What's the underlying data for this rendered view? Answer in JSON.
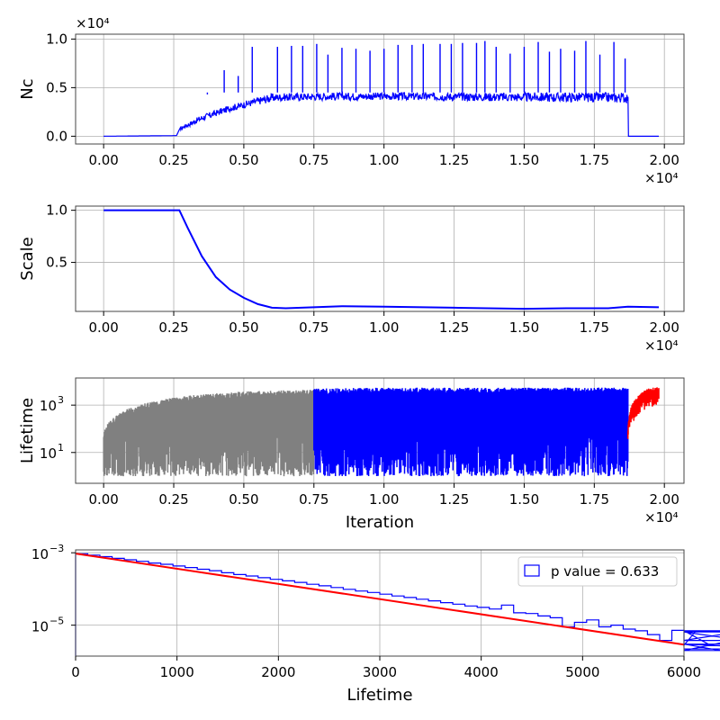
{
  "chart_data": [
    {
      "type": "line",
      "ylabel": "Nc",
      "xlabel": "",
      "xlim": [
        -1000,
        20700
      ],
      "ylim": [
        -800,
        10500
      ],
      "x_ticks": [
        0,
        2500,
        5000,
        7500,
        10000,
        12500,
        15000,
        17500,
        20000
      ],
      "x_tick_labels": [
        "0.00",
        "0.25",
        "0.50",
        "0.75",
        "1.00",
        "1.25",
        "1.50",
        "1.75",
        "2.00"
      ],
      "x_offset_label": "×10⁴",
      "y_ticks": [
        0,
        5000,
        10000
      ],
      "y_tick_labels": [
        "0.0",
        "0.5",
        "1.0"
      ],
      "y_offset_label": "×10⁴",
      "grid": true,
      "series": [
        {
          "color": "#0000ff",
          "description_points": {
            "x": [
              0,
              2600,
              2750,
              3500,
              4500,
              5500,
              6000,
              8000,
              10000,
              12500,
              15000,
              17500,
              18700,
              18720,
              19800
            ],
            "y": [
              0,
              60,
              1000,
              2200,
              3200,
              4000,
              4400,
              4500,
              4500,
              4500,
              4500,
              4500,
              4500,
              0,
              0
            ]
          },
          "band_low": {
            "x": [
              2750,
              3500,
              4500,
              5500,
              6500,
              10000,
              15000,
              18700
            ],
            "y": [
              300,
              1000,
              2000,
              2600,
              3000,
              3100,
              2800,
              2600
            ]
          },
          "spikes": {
            "x": [
              3700,
              4300,
              4800,
              5300,
              6200,
              6700,
              7100,
              7600,
              8000,
              8500,
              9000,
              9500,
              10000,
              10500,
              11000,
              11400,
              12000,
              12400,
              12800,
              13300,
              13600,
              14000,
              14500,
              15000,
              15500,
              15900,
              16300,
              16800,
              17200,
              17700,
              18200,
              18600
            ],
            "y": [
              4300,
              6800,
              6200,
              9200,
              9200,
              9300,
              9300,
              9500,
              8400,
              9100,
              9000,
              8800,
              9000,
              9400,
              9400,
              9500,
              9500,
              9500,
              9600,
              9600,
              9800,
              9200,
              8500,
              9200,
              9700,
              8700,
              9000,
              8800,
              9800,
              8400,
              9700,
              8000
            ]
          }
        }
      ]
    },
    {
      "type": "line",
      "ylabel": "Scale",
      "xlabel": "",
      "xlim": [
        -1000,
        20700
      ],
      "ylim": [
        0.03,
        1.04
      ],
      "x_ticks": [
        0,
        2500,
        5000,
        7500,
        10000,
        12500,
        15000,
        17500,
        20000
      ],
      "x_tick_labels": [
        "0.00",
        "0.25",
        "0.50",
        "0.75",
        "1.00",
        "1.25",
        "1.50",
        "1.75",
        "2.00"
      ],
      "x_offset_label": "×10⁴",
      "y_ticks": [
        0.5,
        1.0
      ],
      "y_tick_labels": [
        "0.5",
        "1.0"
      ],
      "grid": true,
      "series": [
        {
          "color": "#0000ff",
          "x": [
            0,
            2700,
            3000,
            3500,
            4000,
            4500,
            5000,
            5500,
            6000,
            6500,
            7500,
            8500,
            10000,
            12500,
            15000,
            16500,
            18000,
            18700,
            19800
          ],
          "y": [
            1.0,
            1.0,
            0.83,
            0.56,
            0.36,
            0.24,
            0.16,
            0.1,
            0.065,
            0.06,
            0.07,
            0.08,
            0.075,
            0.065,
            0.055,
            0.06,
            0.06,
            0.075,
            0.07
          ]
        }
      ]
    },
    {
      "type": "line",
      "ylabel": "Lifetime",
      "xlabel": "Iteration",
      "yscale": "log",
      "xlim": [
        -1000,
        20700
      ],
      "ylim": [
        0.5,
        14000
      ],
      "x_ticks": [
        0,
        2500,
        5000,
        7500,
        10000,
        12500,
        15000,
        17500,
        20000
      ],
      "x_tick_labels": [
        "0.00",
        "0.25",
        "0.50",
        "0.75",
        "1.00",
        "1.25",
        "1.50",
        "1.75",
        "2.00"
      ],
      "x_offset_label": "×10⁴",
      "y_ticks": [
        10,
        1000
      ],
      "y_tick_labels": [
        "10",
        "3",
        "10",
        "1"
      ],
      "grid": true,
      "series": [
        {
          "color": "#808080",
          "x_range": [
            0,
            7500
          ],
          "upper_envelope": {
            "x": [
              0,
              500,
              1500,
              3000,
              5000,
              7500
            ],
            "y": [
              60,
              400,
              1200,
              2500,
              3800,
              4500
            ]
          }
        },
        {
          "color": "#0000ff",
          "x_range": [
            7500,
            18700
          ],
          "upper_envelope": {
            "x": [
              7500,
              10000,
              12500,
              15000,
              18700
            ],
            "y": [
              5000,
              5500,
              5500,
              5500,
              5500
            ]
          }
        },
        {
          "color": "#ff0000",
          "x_range": [
            18700,
            19800
          ],
          "upper_envelope": {
            "x": [
              18700,
              19000,
              19400,
              19800
            ],
            "y": [
              150,
              2000,
              5000,
              6000
            ]
          }
        }
      ]
    },
    {
      "type": "histogram",
      "xlabel": "Lifetime",
      "ylabel": "",
      "yscale": "log",
      "xlim": [
        0,
        6000
      ],
      "ylim": [
        1.4e-06,
        0.0012
      ],
      "x_ticks": [
        0,
        1000,
        2000,
        3000,
        4000,
        5000,
        6000
      ],
      "x_tick_labels": [
        "0",
        "1000",
        "2000",
        "3000",
        "4000",
        "5000",
        "6000"
      ],
      "y_ticks": [
        1e-05,
        0.001
      ],
      "y_tick_labels": [
        "10",
        "−5",
        "10",
        "−3"
      ],
      "grid": true,
      "legend": {
        "position": "top-right",
        "label": "p value = 0.633"
      },
      "series": [
        {
          "type": "step",
          "color": "#0000ff",
          "bin_width": 120,
          "values": [
            0.00094,
            0.00086,
            0.00078,
            0.0007,
            0.00064,
            0.00058,
            0.00052,
            0.00048,
            0.00043,
            0.00039,
            0.00035,
            0.00032,
            0.00028,
            0.00025,
            0.000228,
            0.000205,
            0.000185,
            0.000168,
            0.000152,
            0.000135,
            0.000122,
            0.00011,
            9.8e-05,
            8.8e-05,
            8e-05,
            7.2e-05,
            6.4e-05,
            5.8e-05,
            5.2e-05,
            4.7e-05,
            4.2e-05,
            3.8e-05,
            3.4e-05,
            3.1e-05,
            2.8e-05,
            3.6e-05,
            2.2e-05,
            2.1e-05,
            1.8e-05,
            1.6e-05,
            9e-06,
            1.2e-05,
            1.4e-05,
            9e-06,
            1e-05,
            7.8e-06,
            7e-06,
            5.5e-06,
            3.8e-06,
            7.2e-06,
            2.8e-06,
            7e-06,
            3e-06,
            2e-06,
            3.8e-06,
            7e-06,
            6.5e-06,
            3e-06,
            3e-06,
            2.2e-06
          ]
        },
        {
          "type": "line",
          "color": "#ff0000",
          "x": [
            0,
            6000
          ],
          "y": [
            0.00095,
            2.9e-06
          ]
        }
      ]
    }
  ]
}
